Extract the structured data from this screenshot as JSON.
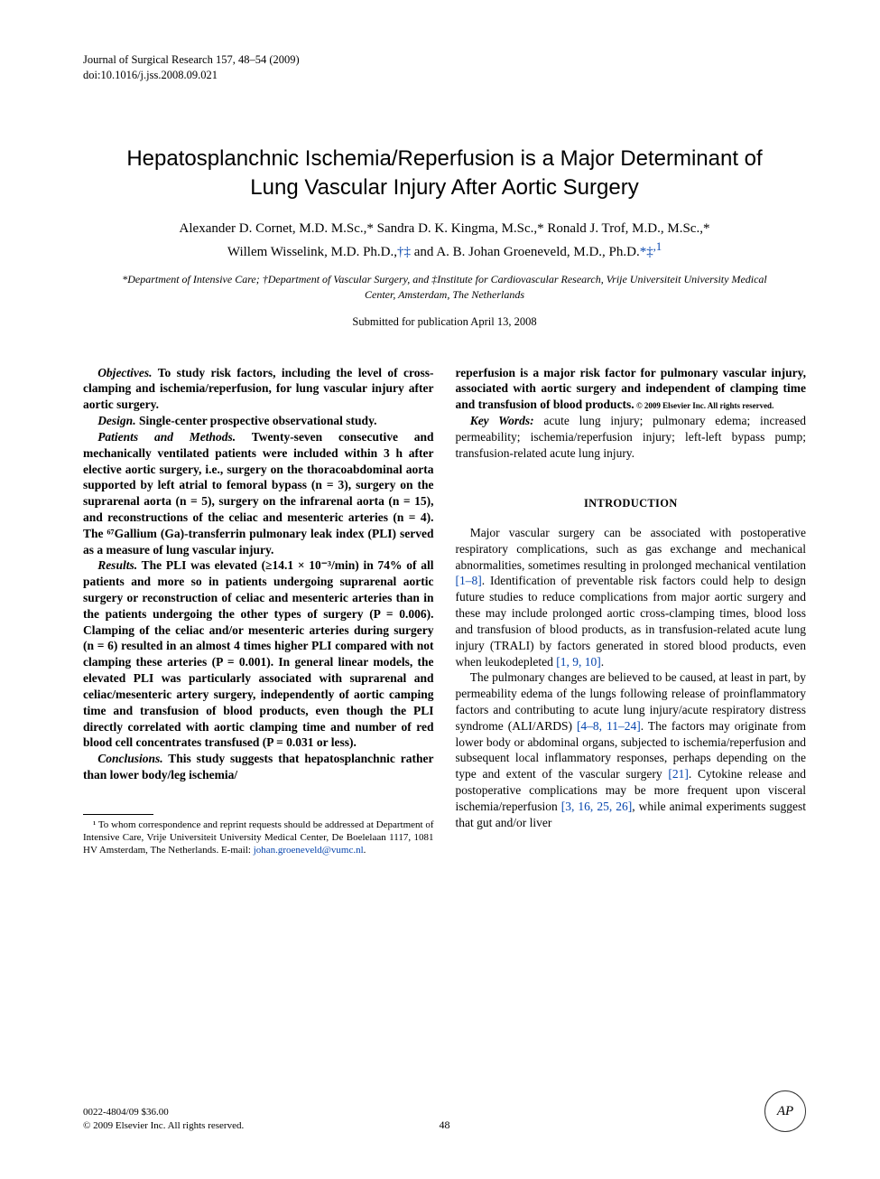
{
  "meta": {
    "journal_line": "Journal of Surgical Research 157, 48–54 (2009)",
    "doi_line": "doi:10.1016/j.jss.2008.09.021"
  },
  "title": "Hepatosplanchnic Ischemia/Reperfusion is a Major Determinant of Lung Vascular Injury After Aortic Surgery",
  "authors_line1": "Alexander D. Cornet, M.D. M.Sc.,* Sandra D. K. Kingma, M.Sc.,* Ronald J. Trof, M.D., M.Sc.,*",
  "authors_line2_pre": "Willem Wisselink, M.D. Ph.D.,",
  "authors_line2_marks1": "†‡",
  "authors_line2_mid": " and A. B. Johan Groeneveld, M.D., Ph.D.",
  "authors_line2_marks2": "*‡",
  "authors_line2_sup": ",1",
  "affiliations": "*Department of Intensive Care; †Department of Vascular Surgery, and ‡Institute for Cardiovascular Research, Vrije Universiteit University Medical Center, Amsterdam, The Netherlands",
  "submitted": "Submitted for publication April 13, 2008",
  "abstract": {
    "objectives": {
      "label": "Objectives.",
      "text": " To study risk factors, including the level of cross-clamping and ischemia/reperfusion, for lung vascular injury after aortic surgery."
    },
    "design": {
      "label": "Design.",
      "text": " Single-center prospective observational study."
    },
    "patients": {
      "label": "Patients and Methods.",
      "text": " Twenty-seven consecutive and mechanically ventilated patients were included within 3 h after elective aortic surgery, i.e., surgery on the thoracoabdominal aorta supported by left atrial to femoral bypass (n = 3), surgery on the suprarenal aorta (n = 5), surgery on the infrarenal aorta (n = 15), and reconstructions of the celiac and mesenteric arteries (n = 4). The ⁶⁷Gallium (Ga)-transferrin pulmonary leak index (PLI) served as a measure of lung vascular injury."
    },
    "results": {
      "label": "Results.",
      "text": " The PLI was elevated (≥14.1 × 10⁻³/min) in 74% of all patients and more so in patients undergoing suprarenal aortic surgery or reconstruction of celiac and mesenteric arteries than in the patients undergoing the other types of surgery (P = 0.006). Clamping of the celiac and/or mesenteric arteries during surgery (n = 6) resulted in an almost 4 times higher PLI compared with not clamping these arteries (P = 0.001). In general linear models, the elevated PLI was particularly associated with suprarenal and celiac/mesenteric artery surgery, independently of aortic camping time and transfusion of blood products, even though the PLI directly correlated with aortic clamping time and number of red blood cell concentrates transfused (P = 0.031 or less)."
    },
    "conclusions": {
      "label": "Conclusions.",
      "text": " This study suggests that hepatosplanchnic rather than lower body/leg ischemia/"
    },
    "conclusions_cont": "reperfusion is a major risk factor for pulmonary vascular injury, associated with aortic surgery and independent of clamping time and transfusion of blood products.",
    "copyright": " © 2009 Elsevier Inc. All rights reserved.",
    "keywords": {
      "label": "Key Words:",
      "text": " acute lung injury; pulmonary edema; increased permeability; ischemia/reperfusion injury; left-left bypass pump; transfusion-related acute lung injury."
    }
  },
  "intro": {
    "heading": "INTRODUCTION",
    "p1_a": "Major vascular surgery can be associated with postoperative respiratory complications, such as gas exchange and mechanical abnormalities, sometimes resulting in prolonged mechanical ventilation ",
    "p1_ref1": "[1–8]",
    "p1_b": ". Identification of preventable risk factors could help to design future studies to reduce complications from major aortic surgery and these may include prolonged aortic cross-clamping times, blood loss and transfusion of blood products, as in transfusion-related acute lung injury (TRALI) by factors generated in stored blood products, even when leukodepleted ",
    "p1_ref2": "[1, 9, 10]",
    "p1_c": ".",
    "p2_a": "The pulmonary changes are believed to be caused, at least in part, by permeability edema of the lungs following release of proinflammatory factors and contributing to acute lung injury/acute respiratory distress syndrome (ALI/ARDS) ",
    "p2_ref1": "[4–8, 11–24]",
    "p2_b": ". The factors may originate from lower body or abdominal organs, subjected to ischemia/reperfusion and subsequent local inflammatory responses, perhaps depending on the type and extent of the vascular surgery ",
    "p2_ref2": "[21]",
    "p2_c": ". Cytokine release and postoperative complications may be more frequent upon visceral ischemia/reperfusion ",
    "p2_ref3": "[3, 16, 25, 26]",
    "p2_d": ", while animal experiments suggest that gut and/or liver"
  },
  "footnote": {
    "text_a": "¹ To whom correspondence and reprint requests should be addressed at Department of Intensive Care, Vrije Universiteit University Medical Center, De Boelelaan 1117, 1081 HV Amsterdam, The Netherlands. E-mail: ",
    "email": "johan.groeneveld@vumc.nl",
    "text_b": "."
  },
  "footer": {
    "issn": "0022-4804/09 $36.00",
    "rights": "© 2009 Elsevier Inc. All rights reserved.",
    "page": "48",
    "logo": "AP"
  },
  "colors": {
    "link": "#0645ad",
    "text": "#000000",
    "bg": "#ffffff"
  }
}
